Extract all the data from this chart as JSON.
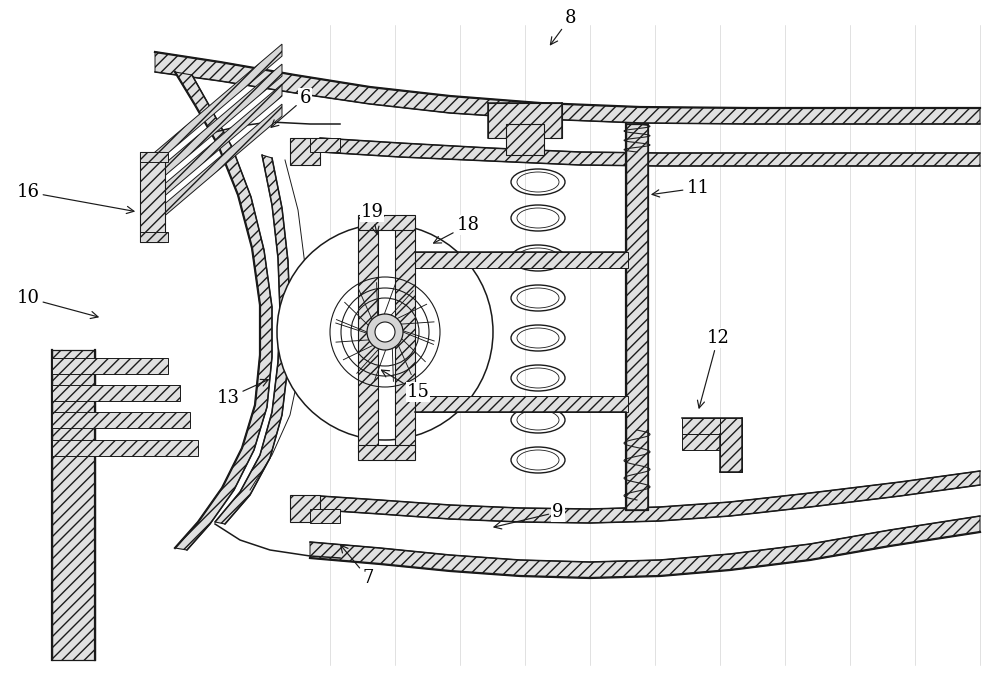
{
  "bg_color": "#ffffff",
  "line_color": "#1a1a1a",
  "label_color": "#000000",
  "figsize": [
    10.0,
    6.87
  ],
  "dpi": 100,
  "labels_config": [
    [
      "8",
      570,
      18,
      548,
      48
    ],
    [
      "6",
      305,
      98,
      268,
      130
    ],
    [
      "16",
      28,
      192,
      138,
      212
    ],
    [
      "10",
      28,
      298,
      102,
      318
    ],
    [
      "13",
      228,
      398,
      272,
      378
    ],
    [
      "7",
      368,
      578,
      338,
      542
    ],
    [
      "9",
      558,
      512,
      490,
      528
    ],
    [
      "19",
      372,
      212,
      378,
      238
    ],
    [
      "18",
      468,
      225,
      430,
      245
    ],
    [
      "15",
      418,
      392,
      378,
      368
    ],
    [
      "11",
      698,
      188,
      648,
      195
    ],
    [
      "12",
      718,
      338,
      698,
      412
    ]
  ]
}
